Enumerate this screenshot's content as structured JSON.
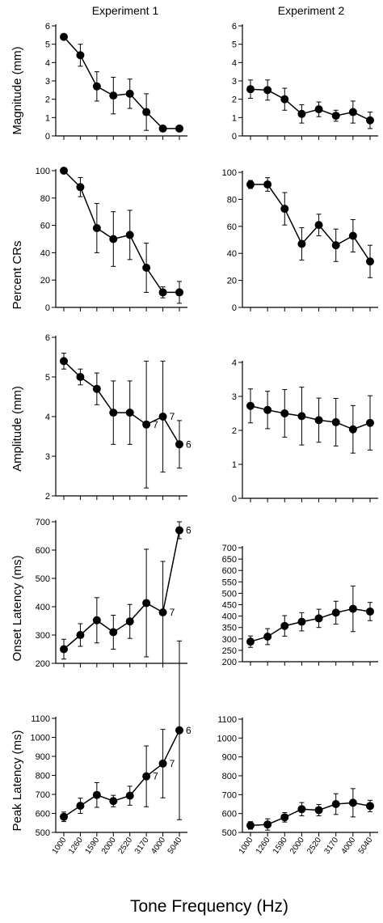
{
  "figure": {
    "column_titles": [
      "Experiment 1",
      "Experiment 2"
    ],
    "x_axis_title": "Tone Frequency (Hz)"
  },
  "chart_data": [
    {
      "type": "line",
      "panel": "magnitude-exp1",
      "title": "Experiment 1",
      "ylabel": "Magnitude (mm)",
      "xlabel": "",
      "categories": [
        "1000",
        "1260",
        "1590",
        "2000",
        "2520",
        "3170",
        "4000",
        "5040"
      ],
      "ylim": [
        0,
        6
      ],
      "yticks": [
        0,
        1,
        2,
        3,
        4,
        5,
        6
      ],
      "series": [
        {
          "values": [
            5.4,
            4.4,
            2.7,
            2.2,
            2.3,
            1.3,
            0.4,
            0.4
          ],
          "error": [
            0.0,
            0.6,
            0.8,
            1.0,
            0.8,
            1.0,
            0.0,
            0.0
          ]
        }
      ],
      "annotations": []
    },
    {
      "type": "line",
      "panel": "magnitude-exp2",
      "title": "Experiment 2",
      "ylabel": "",
      "xlabel": "",
      "categories": [
        "1000",
        "1260",
        "1590",
        "2000",
        "2520",
        "3170",
        "4000",
        "5040"
      ],
      "ylim": [
        0,
        6
      ],
      "yticks": [
        0,
        1,
        2,
        3,
        4,
        5,
        6
      ],
      "series": [
        {
          "values": [
            2.55,
            2.5,
            2.0,
            1.2,
            1.45,
            1.1,
            1.3,
            0.85
          ],
          "error": [
            0.5,
            0.55,
            0.6,
            0.5,
            0.4,
            0.3,
            0.6,
            0.45
          ]
        }
      ],
      "annotations": []
    },
    {
      "type": "line",
      "panel": "percent-exp1",
      "title": "",
      "ylabel": "Percent CRs",
      "xlabel": "",
      "categories": [
        "1000",
        "1260",
        "1590",
        "2000",
        "2520",
        "3170",
        "4000",
        "5040"
      ],
      "ylim": [
        0,
        100
      ],
      "yticks": [
        0,
        20,
        40,
        60,
        80,
        100
      ],
      "series": [
        {
          "values": [
            100,
            88,
            58,
            50,
            53,
            29,
            11,
            11
          ],
          "error": [
            0,
            7,
            18,
            20,
            18,
            18,
            4,
            8
          ]
        }
      ],
      "annotations": []
    },
    {
      "type": "line",
      "panel": "percent-exp2",
      "title": "",
      "ylabel": "",
      "xlabel": "",
      "categories": [
        "1000",
        "1260",
        "1590",
        "2000",
        "2520",
        "3170",
        "4000",
        "5040"
      ],
      "ylim": [
        0,
        100
      ],
      "yticks": [
        0,
        20,
        40,
        60,
        80,
        100
      ],
      "series": [
        {
          "values": [
            91,
            91,
            73,
            47,
            61,
            46,
            53,
            34
          ],
          "error": [
            3,
            5,
            12,
            12,
            8,
            12,
            12,
            12
          ]
        }
      ],
      "annotations": []
    },
    {
      "type": "line",
      "panel": "amplitude-exp1",
      "title": "",
      "ylabel": "Amplitude (mm)",
      "xlabel": "",
      "categories": [
        "1000",
        "1260",
        "1590",
        "2000",
        "2520",
        "3170",
        "4000",
        "5040"
      ],
      "ylim": [
        2,
        6
      ],
      "yticks": [
        2,
        3,
        4,
        5,
        6
      ],
      "series": [
        {
          "values": [
            5.4,
            5.0,
            4.7,
            4.1,
            4.1,
            3.8,
            4.0,
            3.3
          ],
          "error": [
            0.2,
            0.2,
            0.4,
            0.8,
            0.8,
            1.6,
            1.4,
            0.6
          ]
        }
      ],
      "annotations": [
        {
          "index": 5,
          "text": "7"
        },
        {
          "index": 6,
          "text": "7"
        },
        {
          "index": 7,
          "text": "6"
        }
      ]
    },
    {
      "type": "line",
      "panel": "amplitude-exp2",
      "title": "",
      "ylabel": "",
      "xlabel": "",
      "categories": [
        "1000",
        "1260",
        "1590",
        "2000",
        "2520",
        "3170",
        "4000",
        "5040"
      ],
      "ylim": [
        0,
        4
      ],
      "yticks": [
        0,
        1,
        2,
        3,
        4
      ],
      "series": [
        {
          "values": [
            2.72,
            2.6,
            2.5,
            2.42,
            2.3,
            2.24,
            2.03,
            2.22
          ],
          "error": [
            0.5,
            0.55,
            0.7,
            0.85,
            0.65,
            0.7,
            0.7,
            0.8
          ]
        }
      ],
      "annotations": []
    },
    {
      "type": "line",
      "panel": "onset-exp1",
      "title": "",
      "ylabel": "Onset Latency (ms)",
      "xlabel": "",
      "categories": [
        "1000",
        "1260",
        "1590",
        "2000",
        "2520",
        "3170",
        "4000",
        "5040"
      ],
      "ylim": [
        200,
        700
      ],
      "yticks": [
        200,
        300,
        400,
        500,
        600,
        700
      ],
      "series": [
        {
          "values": [
            250,
            300,
            352,
            310,
            348,
            413,
            380,
            670
          ],
          "error": [
            35,
            40,
            80,
            60,
            60,
            190,
            180,
            30
          ]
        }
      ],
      "annotations": [
        {
          "index": 6,
          "text": "7"
        },
        {
          "index": 7,
          "text": "6"
        }
      ]
    },
    {
      "type": "line",
      "panel": "onset-exp2",
      "title": "",
      "ylabel": "",
      "xlabel": "",
      "categories": [
        "1000",
        "1260",
        "1590",
        "2000",
        "2520",
        "3170",
        "4000",
        "5040"
      ],
      "ylim": [
        200,
        700
      ],
      "yticks": [
        200,
        250,
        300,
        350,
        400,
        450,
        500,
        550,
        600,
        650,
        700
      ],
      "series": [
        {
          "values": [
            288,
            310,
            357,
            375,
            390,
            415,
            432,
            420
          ],
          "error": [
            25,
            35,
            45,
            40,
            40,
            50,
            100,
            40
          ]
        }
      ],
      "annotations": []
    },
    {
      "type": "line",
      "panel": "peak-exp1",
      "title": "",
      "ylabel": "Peak Latency (ms)",
      "xlabel": "",
      "categories": [
        "1000",
        "1260",
        "1590",
        "2000",
        "2520",
        "3170",
        "4000",
        "5040"
      ],
      "ylim": [
        500,
        1100
      ],
      "yticks": [
        500,
        600,
        700,
        800,
        900,
        1000,
        1100
      ],
      "series": [
        {
          "values": [
            582,
            640,
            697,
            665,
            693,
            795,
            862,
            1037
          ],
          "error": [
            25,
            40,
            65,
            30,
            50,
            160,
            180,
            470
          ]
        }
      ],
      "annotations": [
        {
          "index": 5,
          "text": "7"
        },
        {
          "index": 6,
          "text": "7"
        },
        {
          "index": 7,
          "text": "6"
        }
      ]
    },
    {
      "type": "line",
      "panel": "peak-exp2",
      "title": "",
      "ylabel": "",
      "xlabel": "",
      "categories": [
        "1000",
        "1260",
        "1590",
        "2000",
        "2520",
        "3170",
        "4000",
        "5040"
      ],
      "ylim": [
        500,
        1100
      ],
      "yticks": [
        500,
        600,
        700,
        800,
        900,
        1000,
        1100
      ],
      "series": [
        {
          "values": [
            537,
            542,
            580,
            623,
            618,
            650,
            657,
            640
          ],
          "error": [
            20,
            30,
            25,
            35,
            30,
            55,
            75,
            30
          ]
        }
      ],
      "annotations": []
    }
  ]
}
